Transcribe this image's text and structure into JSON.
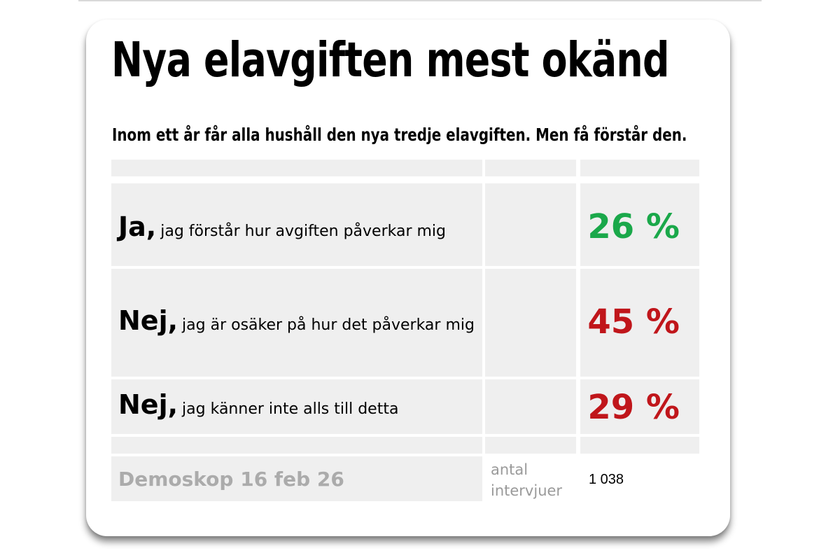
{
  "chart_data": {
    "type": "table",
    "title": "Nya elavgiften mest okänd",
    "subtitle": "Inom ett år får alla hushåll den nya tredje elavgiften. Men få förstår den.",
    "rows": [
      {
        "lead": "Ja,",
        "text": "jag förstår hur avgiften påverkar mig",
        "value": "26 %",
        "color": "#1aa84a"
      },
      {
        "lead": "Nej,",
        "text": "jag är osäker på hur det påverkar mig",
        "value": "45 %",
        "color": "#c0161b"
      },
      {
        "lead": "Nej,",
        "text": "jag känner inte alls till detta",
        "value": "29 %",
        "color": "#c0161b"
      }
    ],
    "values": [
      26,
      45,
      29
    ],
    "footer": {
      "source": "Demoskop 16 feb 26",
      "sample_label": "antal intervjuer",
      "sample_value": "1 038"
    }
  }
}
